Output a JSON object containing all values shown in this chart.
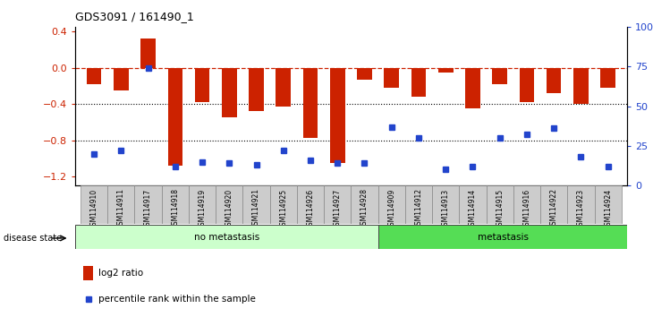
{
  "title": "GDS3091 / 161490_1",
  "samples": [
    "GSM114910",
    "GSM114911",
    "GSM114917",
    "GSM114918",
    "GSM114919",
    "GSM114920",
    "GSM114921",
    "GSM114925",
    "GSM114926",
    "GSM114927",
    "GSM114928",
    "GSM114909",
    "GSM114912",
    "GSM114913",
    "GSM114914",
    "GSM114915",
    "GSM114916",
    "GSM114922",
    "GSM114923",
    "GSM114924"
  ],
  "log2_ratio": [
    -0.18,
    -0.25,
    0.32,
    -1.08,
    -0.38,
    -0.55,
    -0.48,
    -0.43,
    -0.78,
    -1.05,
    -0.13,
    -0.22,
    -0.32,
    -0.05,
    -0.45,
    -0.18,
    -0.38,
    -0.28,
    -0.4,
    -0.22
  ],
  "percentile_rank": [
    20,
    22,
    74,
    12,
    15,
    14,
    13,
    22,
    16,
    14,
    14,
    37,
    30,
    10,
    12,
    30,
    32,
    36,
    18,
    12
  ],
  "no_metastasis_count": 11,
  "metastasis_count": 9,
  "ylim_left": [
    -1.3,
    0.45
  ],
  "ylim_right": [
    0,
    100
  ],
  "yticks_left": [
    0.4,
    0.0,
    -0.4,
    -0.8,
    -1.2
  ],
  "yticks_right": [
    100,
    75,
    50,
    25,
    0
  ],
  "bar_color": "#cc2200",
  "dot_color": "#2244cc",
  "no_metastasis_color": "#ccffcc",
  "metastasis_color": "#55dd55",
  "label_bg_color": "#cccccc",
  "hline_color": "#cc2200",
  "grid_color": "#000000",
  "legend_bar_label": "log2 ratio",
  "legend_dot_label": "percentile rank within the sample",
  "disease_state_label": "disease state",
  "no_metastasis_label": "no metastasis",
  "metastasis_label": "metastasis"
}
